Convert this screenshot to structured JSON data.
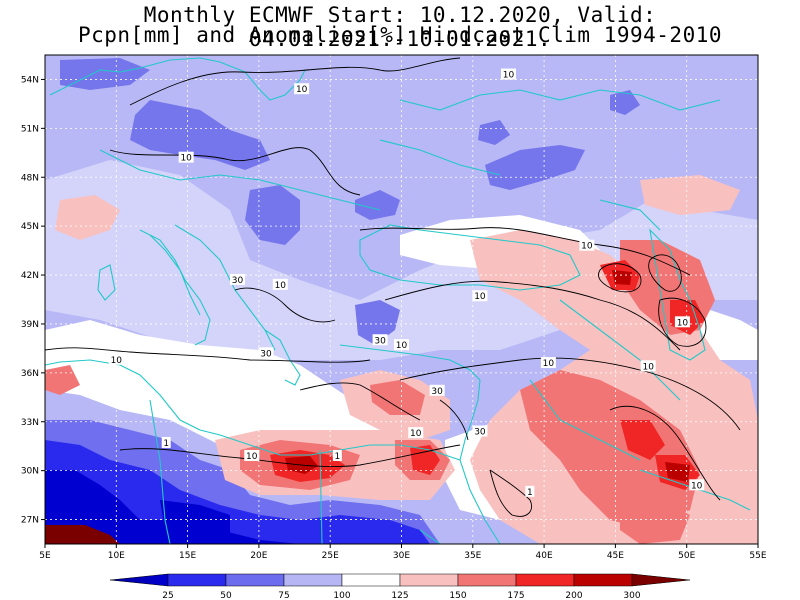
{
  "header": {
    "title_line1": "Monthly ECMWF Start: 10.12.2020, Valid: 04.01.2021.-10.01.2021.",
    "title_line2": "Pcpn[mm] and Anomalies[%] Hindcast Clim 1994-2010"
  },
  "map": {
    "projection": "lat-lon",
    "extent": {
      "lon": [
        5,
        55
      ],
      "lat": [
        25.5,
        55.5
      ]
    },
    "lat_ticks": [
      {
        "value": 54,
        "label": "54N"
      },
      {
        "value": 51,
        "label": "51N"
      },
      {
        "value": 48,
        "label": "48N"
      },
      {
        "value": 45,
        "label": "45N"
      },
      {
        "value": 42,
        "label": "42N"
      },
      {
        "value": 39,
        "label": "39N"
      },
      {
        "value": 36,
        "label": "36N"
      },
      {
        "value": 33,
        "label": "33N"
      },
      {
        "value": 30,
        "label": "30N"
      },
      {
        "value": 27,
        "label": "27N"
      }
    ],
    "lon_ticks": [
      {
        "value": 5,
        "label": "5E"
      },
      {
        "value": 10,
        "label": "10E"
      },
      {
        "value": 15,
        "label": "15E"
      },
      {
        "value": 20,
        "label": "20E"
      },
      {
        "value": 25,
        "label": "25E"
      },
      {
        "value": 30,
        "label": "30E"
      },
      {
        "value": 35,
        "label": "35E"
      },
      {
        "value": 40,
        "label": "40E"
      },
      {
        "value": 45,
        "label": "45E"
      },
      {
        "value": 50,
        "label": "50E"
      },
      {
        "value": 55,
        "label": "55E"
      }
    ],
    "contour_labels": [
      {
        "text": "10",
        "lon": 23.0,
        "lat": 53.4
      },
      {
        "text": "10",
        "lon": 37.5,
        "lat": 54.3
      },
      {
        "text": "10",
        "lon": 14.9,
        "lat": 49.2
      },
      {
        "text": "10",
        "lon": 43.0,
        "lat": 43.8
      },
      {
        "text": "30",
        "lon": 18.5,
        "lat": 41.7
      },
      {
        "text": "10",
        "lon": 21.5,
        "lat": 41.4
      },
      {
        "text": "10",
        "lon": 35.5,
        "lat": 40.7
      },
      {
        "text": "10",
        "lon": 49.7,
        "lat": 39.1
      },
      {
        "text": "10",
        "lon": 30.0,
        "lat": 37.7
      },
      {
        "text": "30",
        "lon": 28.5,
        "lat": 38.0
      },
      {
        "text": "30",
        "lon": 20.5,
        "lat": 37.2
      },
      {
        "text": "10",
        "lon": 10.0,
        "lat": 36.8
      },
      {
        "text": "10",
        "lon": 40.3,
        "lat": 36.6
      },
      {
        "text": "10",
        "lon": 47.3,
        "lat": 36.4
      },
      {
        "text": "30",
        "lon": 32.5,
        "lat": 34.9
      },
      {
        "text": "10",
        "lon": 31.0,
        "lat": 32.3
      },
      {
        "text": "30",
        "lon": 35.5,
        "lat": 32.4
      },
      {
        "text": "1",
        "lon": 13.5,
        "lat": 31.7
      },
      {
        "text": "10",
        "lon": 19.5,
        "lat": 30.9
      },
      {
        "text": "1",
        "lon": 25.5,
        "lat": 30.9
      },
      {
        "text": "1",
        "lon": 39.0,
        "lat": 28.7
      },
      {
        "text": "10",
        "lon": 50.7,
        "lat": 29.1
      }
    ]
  },
  "colorbar": {
    "labels": [
      "25",
      "50",
      "75",
      "100",
      "125",
      "150",
      "175",
      "200",
      "300"
    ],
    "colors": [
      "#0000d0",
      "#2a2aef",
      "#6c6cef",
      "#b6b6f5",
      "#ffffff",
      "#f9c0c0",
      "#f27575",
      "#f02525",
      "#bb0000",
      "#7a0000"
    ]
  },
  "colors": {
    "base_anomaly": "#b8b8f6",
    "coast": "#22c8c8",
    "contour": "#000000",
    "grid": "#ffffff"
  }
}
